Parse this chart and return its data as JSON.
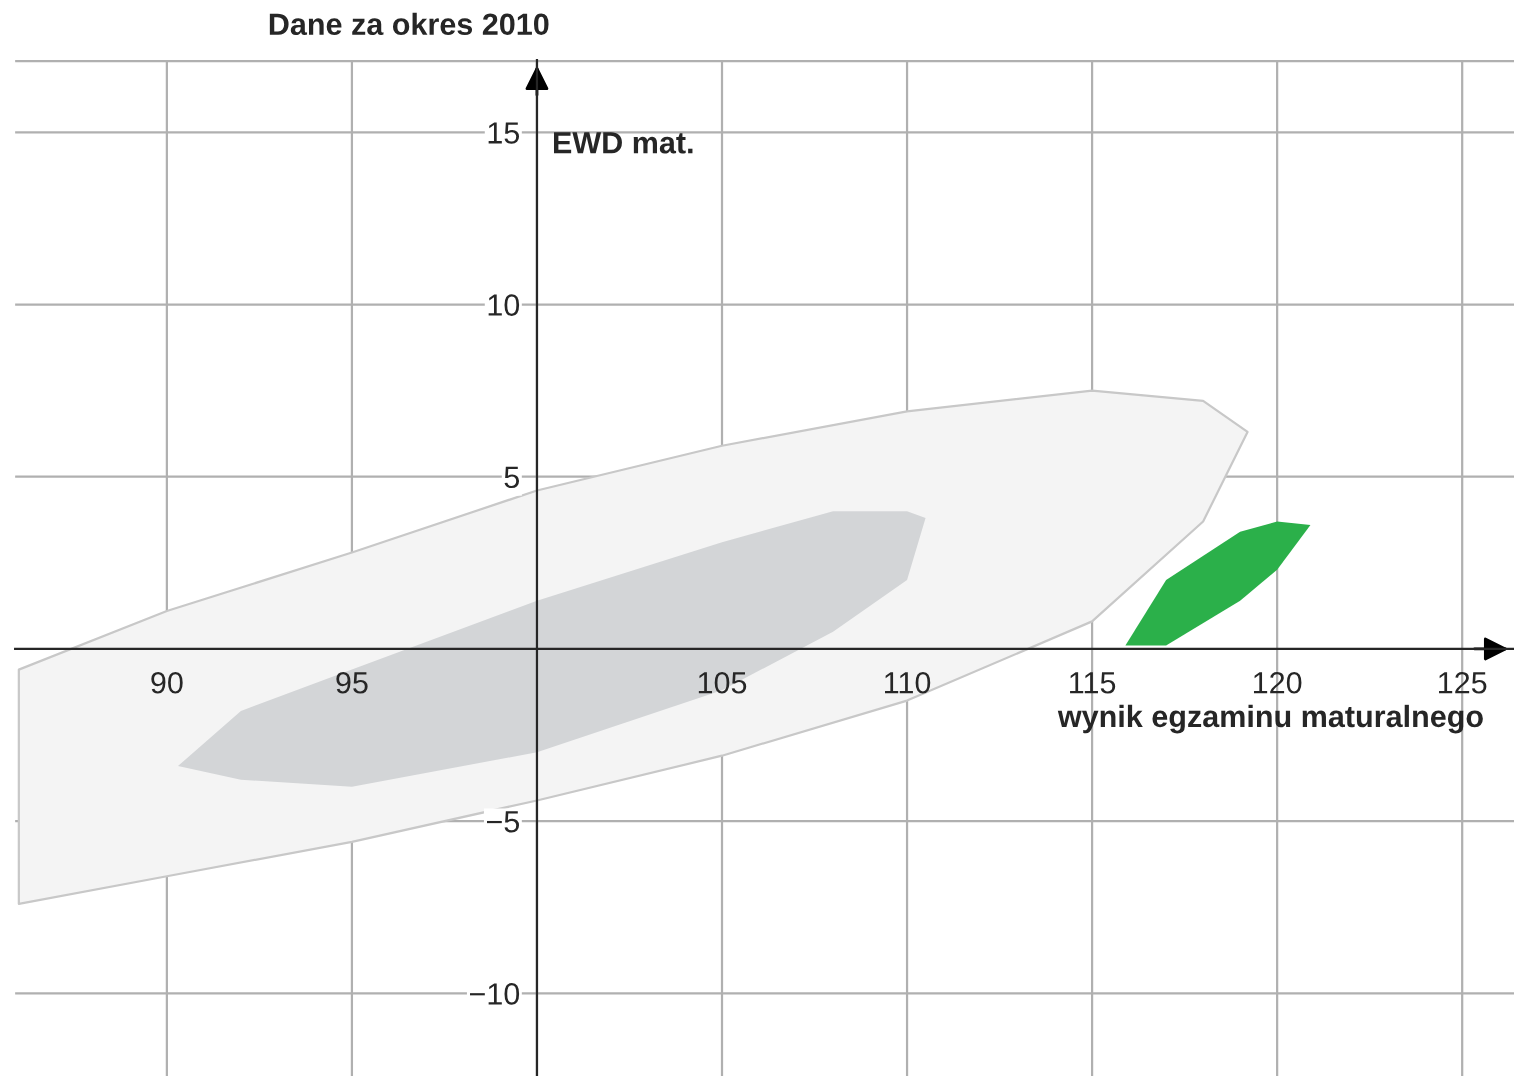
{
  "chart_data": {
    "type": "area",
    "title": "Dane za okres 2010",
    "xlabel": "wynik egzaminu maturalnego",
    "ylabel": "EWD mat.",
    "xlim": [
      85.9,
      126.4
    ],
    "ylim": [
      -12.4,
      17.1
    ],
    "xticks": [
      90,
      95,
      105,
      110,
      115,
      120,
      125
    ],
    "yticks": [
      {
        "value": -10,
        "label": "−10"
      },
      {
        "value": -5,
        "label": "−5"
      },
      5,
      10,
      15
    ],
    "grid": true,
    "series": [
      {
        "color": "#f4f4f4",
        "x": [
          86,
          90,
          95,
          100,
          105,
          110,
          115,
          118,
          119.2,
          118,
          115,
          110,
          105,
          100,
          95,
          90,
          86
        ],
        "values": [
          -0.6,
          1.1,
          2.8,
          4.6,
          5.9,
          6.9,
          7.5,
          7.2,
          6.3,
          3.7,
          0.8,
          -1.5,
          -3.1,
          -4.4,
          -5.6,
          -6.6,
          -7.4
        ]
      },
      {
        "color": "#d3d5d7",
        "x": [
          90.3,
          92,
          95,
          100,
          105,
          108,
          110,
          110.5,
          110,
          108,
          105,
          100,
          95,
          92
        ],
        "values": [
          -3.4,
          -1.8,
          -0.6,
          1.4,
          3.1,
          4.0,
          4.0,
          3.8,
          2.0,
          0.5,
          -1.2,
          -3.0,
          -4.0,
          -3.8
        ]
      },
      {
        "color": "#2bb04a",
        "x": [
          115.9,
          117,
          119,
          120,
          120.9,
          120,
          119,
          117
        ],
        "values": [
          0.1,
          2.0,
          3.4,
          3.7,
          3.6,
          2.3,
          1.4,
          0.1
        ]
      }
    ]
  }
}
